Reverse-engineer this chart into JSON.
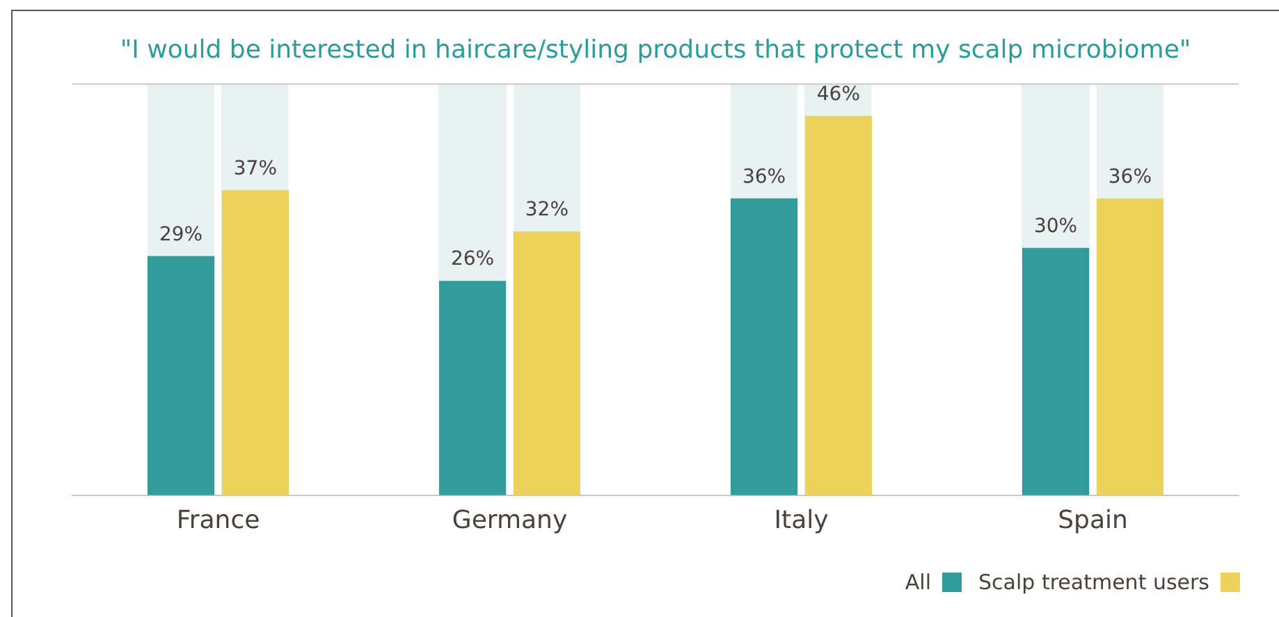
{
  "chart_data": {
    "type": "bar",
    "title": "\"I would be interested in haircare/styling products that protect my scalp microbiome\"",
    "categories": [
      "France",
      "Germany",
      "Italy",
      "Spain"
    ],
    "series": [
      {
        "name": "All",
        "color": "#329b9c",
        "values": [
          29,
          26,
          36,
          30
        ],
        "value_labels": [
          "29%",
          "26%",
          "36%",
          "30%"
        ]
      },
      {
        "name": "Scalp treatment users",
        "color": "#edd35b",
        "values": [
          37,
          32,
          46,
          36
        ],
        "value_labels": [
          "37%",
          "32%",
          "46%",
          "36%"
        ]
      }
    ],
    "legend": "bottom right",
    "grid": false
  }
}
